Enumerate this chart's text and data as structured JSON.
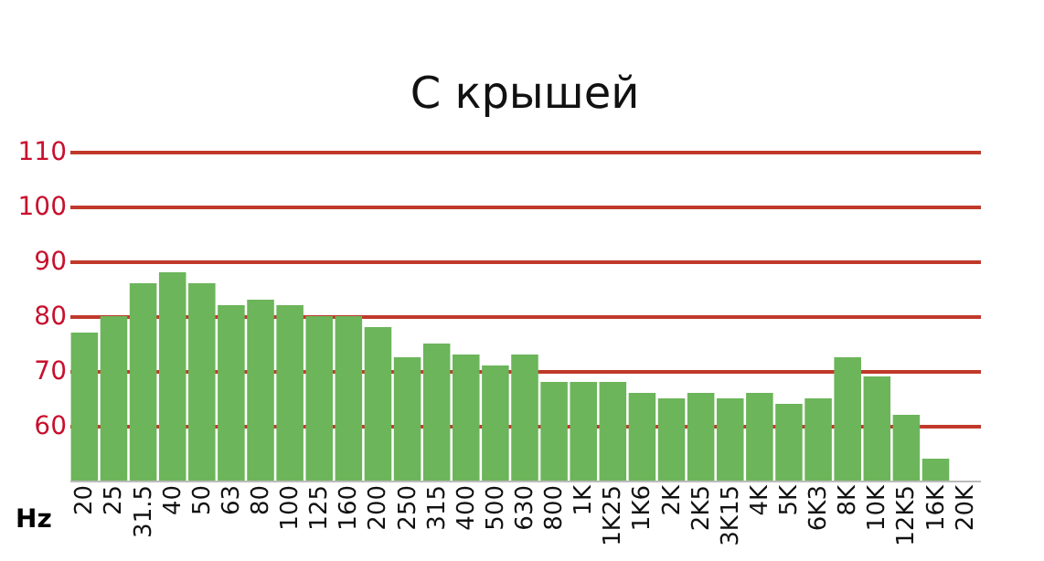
{
  "chart_data": {
    "type": "bar",
    "title": "С крышей",
    "xlabel": "Hz",
    "categories": [
      "20",
      "25",
      "31.5",
      "40",
      "50",
      "63",
      "80",
      "100",
      "125",
      "160",
      "200",
      "250",
      "315",
      "400",
      "500",
      "630",
      "800",
      "1K",
      "1K25",
      "1K6",
      "2K",
      "2K5",
      "3K15",
      "4K",
      "5K",
      "6K3",
      "8K",
      "10K",
      "12K5",
      "16K",
      "20K"
    ],
    "values": [
      77,
      80,
      86,
      88,
      86,
      82,
      83,
      82,
      80,
      80,
      78,
      72.5,
      75,
      73,
      71,
      73,
      68,
      68,
      68,
      66,
      65,
      66,
      65,
      66,
      64,
      65,
      72.5,
      69,
      62,
      54,
      null
    ],
    "color": "#6cb55a",
    "ylim": [
      50,
      110
    ],
    "yticks": [
      60,
      70,
      80,
      90,
      100,
      110
    ],
    "grid": "y"
  }
}
